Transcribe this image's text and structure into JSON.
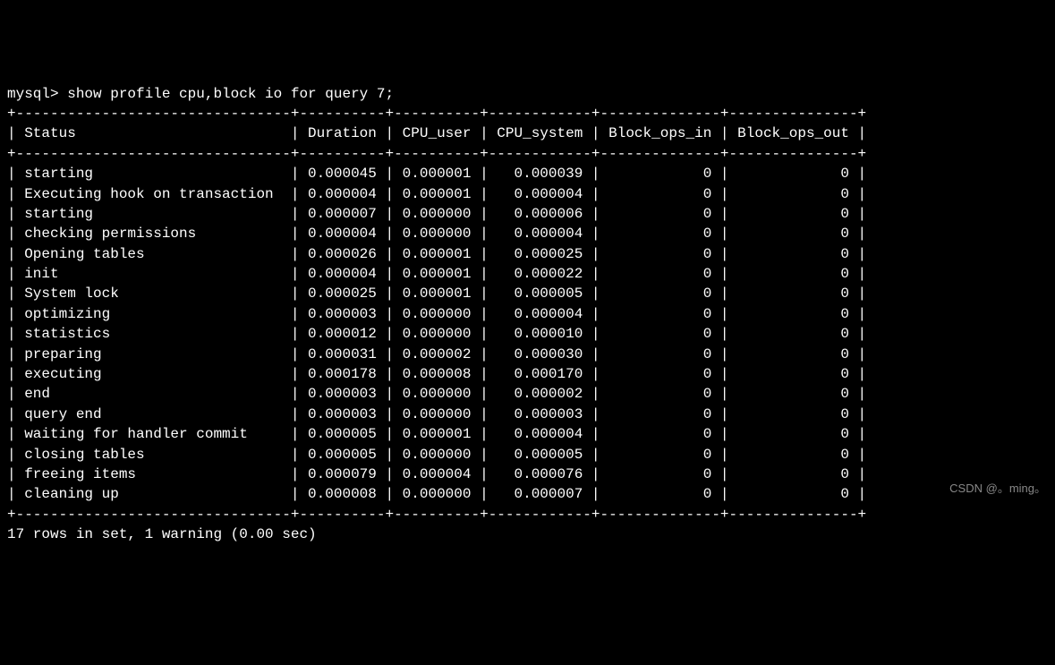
{
  "prompt": "mysql> show profile cpu,block io for query 7;",
  "border_top": "+--------------------------------+----------+----------+------------+--------------+---------------+",
  "columns": {
    "status": "Status",
    "duration": "Duration",
    "cpu_user": "CPU_user",
    "cpu_system": "CPU_system",
    "block_ops_in": "Block_ops_in",
    "block_ops_out": "Block_ops_out"
  },
  "rows": [
    {
      "status": "starting",
      "duration": "0.000045",
      "cpu_user": "0.000001",
      "cpu_system": "0.000039",
      "block_ops_in": "0",
      "block_ops_out": "0"
    },
    {
      "status": "Executing hook on transaction ",
      "duration": "0.000004",
      "cpu_user": "0.000001",
      "cpu_system": "0.000004",
      "block_ops_in": "0",
      "block_ops_out": "0"
    },
    {
      "status": "starting",
      "duration": "0.000007",
      "cpu_user": "0.000000",
      "cpu_system": "0.000006",
      "block_ops_in": "0",
      "block_ops_out": "0"
    },
    {
      "status": "checking permissions",
      "duration": "0.000004",
      "cpu_user": "0.000000",
      "cpu_system": "0.000004",
      "block_ops_in": "0",
      "block_ops_out": "0"
    },
    {
      "status": "Opening tables",
      "duration": "0.000026",
      "cpu_user": "0.000001",
      "cpu_system": "0.000025",
      "block_ops_in": "0",
      "block_ops_out": "0"
    },
    {
      "status": "init",
      "duration": "0.000004",
      "cpu_user": "0.000001",
      "cpu_system": "0.000022",
      "block_ops_in": "0",
      "block_ops_out": "0"
    },
    {
      "status": "System lock",
      "duration": "0.000025",
      "cpu_user": "0.000001",
      "cpu_system": "0.000005",
      "block_ops_in": "0",
      "block_ops_out": "0"
    },
    {
      "status": "optimizing",
      "duration": "0.000003",
      "cpu_user": "0.000000",
      "cpu_system": "0.000004",
      "block_ops_in": "0",
      "block_ops_out": "0"
    },
    {
      "status": "statistics",
      "duration": "0.000012",
      "cpu_user": "0.000000",
      "cpu_system": "0.000010",
      "block_ops_in": "0",
      "block_ops_out": "0"
    },
    {
      "status": "preparing",
      "duration": "0.000031",
      "cpu_user": "0.000002",
      "cpu_system": "0.000030",
      "block_ops_in": "0",
      "block_ops_out": "0"
    },
    {
      "status": "executing",
      "duration": "0.000178",
      "cpu_user": "0.000008",
      "cpu_system": "0.000170",
      "block_ops_in": "0",
      "block_ops_out": "0"
    },
    {
      "status": "end",
      "duration": "0.000003",
      "cpu_user": "0.000000",
      "cpu_system": "0.000002",
      "block_ops_in": "0",
      "block_ops_out": "0"
    },
    {
      "status": "query end",
      "duration": "0.000003",
      "cpu_user": "0.000000",
      "cpu_system": "0.000003",
      "block_ops_in": "0",
      "block_ops_out": "0"
    },
    {
      "status": "waiting for handler commit",
      "duration": "0.000005",
      "cpu_user": "0.000001",
      "cpu_system": "0.000004",
      "block_ops_in": "0",
      "block_ops_out": "0"
    },
    {
      "status": "closing tables",
      "duration": "0.000005",
      "cpu_user": "0.000000",
      "cpu_system": "0.000005",
      "block_ops_in": "0",
      "block_ops_out": "0"
    },
    {
      "status": "freeing items",
      "duration": "0.000079",
      "cpu_user": "0.000004",
      "cpu_system": "0.000076",
      "block_ops_in": "0",
      "block_ops_out": "0"
    },
    {
      "status": "cleaning up",
      "duration": "0.000008",
      "cpu_user": "0.000000",
      "cpu_system": "0.000007",
      "block_ops_in": "0",
      "block_ops_out": "0"
    }
  ],
  "col_widths": {
    "status": 32,
    "duration": 10,
    "cpu_user": 10,
    "cpu_system": 12,
    "block_ops_in": 14,
    "block_ops_out": 15
  },
  "footer": "17 rows in set, 1 warning (0.00 sec)",
  "watermark": "CSDN @。ming。",
  "colors": {
    "background": "#000000",
    "text": "#ffffff",
    "watermark": "#888888"
  }
}
